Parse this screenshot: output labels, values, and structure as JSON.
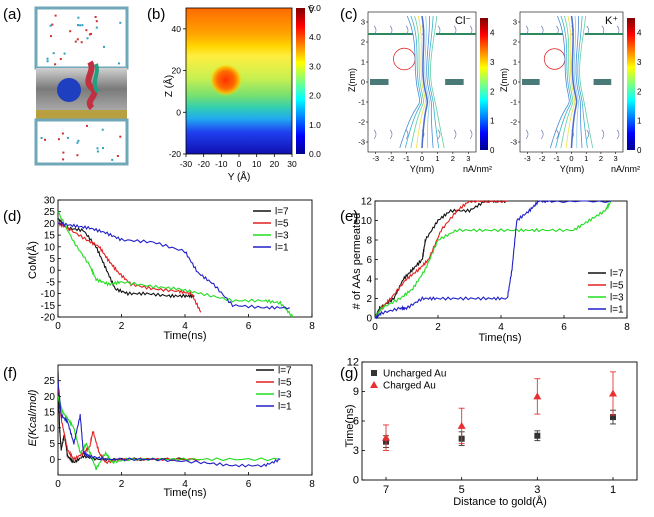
{
  "panel_labels": [
    "(a)",
    "(b)",
    "(c)",
    "(d)",
    "(e)",
    "(f)",
    "(g)"
  ],
  "chart_data": [
    {
      "id": "b",
      "type": "heatmap",
      "xlabel": "Y (Å)",
      "ylabel": "Z (Å)",
      "xticks": [
        "-30",
        "-20",
        "-10",
        "0",
        "10",
        "20",
        "30"
      ],
      "yticks": [
        "-20",
        "0",
        "20",
        "40"
      ],
      "xlim": [
        -30,
        30
      ],
      "ylim": [
        -20,
        50
      ],
      "colorbar": {
        "unit": "V",
        "min": 0.0,
        "max": 5.0,
        "ticks": [
          "0.0",
          "1.0",
          "2.0",
          "3.0",
          "4.0",
          "5.0"
        ]
      },
      "regions": [
        {
          "z_from": 30,
          "z_to": 50,
          "value": 4.6
        },
        {
          "z_from": 10,
          "z_to": 30,
          "value": 3.5
        },
        {
          "z_from": 0,
          "z_to": 10,
          "value": 2.2
        },
        {
          "z_from": -20,
          "z_to": 0,
          "value": 0.5
        }
      ],
      "hotspot": {
        "y": -9,
        "z": 15,
        "value": 4.7
      }
    },
    {
      "id": "c",
      "type": "heatmap",
      "xlabel": "Y(nm)",
      "ylabel": "Z(nm)",
      "ion_labels": [
        "Cl⁻",
        "K⁺"
      ],
      "xticks": [
        "-3",
        "-2",
        "-1",
        "0",
        "1",
        "2",
        "3"
      ],
      "yticks": [
        "-3",
        "-2",
        "-1",
        "0",
        "1",
        "2",
        "3"
      ],
      "colorbar": {
        "unit": "nA/nm²",
        "min": 0,
        "max": 4.5,
        "ticks": [
          "0",
          "1",
          "2",
          "3",
          "4"
        ]
      }
    },
    {
      "id": "d",
      "type": "line",
      "xlabel": "Time(ns)",
      "ylabel": "CoM(Å)",
      "xlim": [
        0,
        8
      ],
      "ylim": [
        -20,
        30
      ],
      "xticks": [
        "0",
        "2",
        "4",
        "6",
        "8"
      ],
      "yticks": [
        "-20",
        "-15",
        "-10",
        "-5",
        "0",
        "5",
        "10",
        "15",
        "20",
        "25",
        "30"
      ],
      "legend_position": "top-right",
      "series": [
        {
          "name": "l=7",
          "color": "#111111",
          "x": [
            0,
            0.3,
            0.8,
            1.2,
            1.5,
            1.8,
            2.2,
            2.8,
            3.5,
            4.0,
            4.3
          ],
          "y": [
            22,
            18,
            17,
            10,
            1,
            -8,
            -10,
            -10,
            -11,
            -11,
            -11
          ]
        },
        {
          "name": "l=5",
          "color": "#e02020",
          "x": [
            0,
            0.3,
            0.9,
            1.3,
            1.6,
            1.9,
            2.3,
            3.0,
            3.8,
            4.2,
            4.5
          ],
          "y": [
            20,
            18,
            13,
            10,
            4,
            -1,
            -6,
            -8,
            -9,
            -10,
            -18
          ]
        },
        {
          "name": "l=3",
          "color": "#22dd22",
          "x": [
            0,
            0.5,
            1.0,
            1.2,
            1.6,
            2.0,
            3.0,
            3.8,
            4.5,
            5.5,
            6.5,
            7.0,
            7.4
          ],
          "y": [
            25,
            12,
            2,
            -4,
            -6,
            -5,
            -7,
            -8,
            -10,
            -13,
            -13,
            -14,
            -20
          ]
        },
        {
          "name": "l=1",
          "color": "#2020c8",
          "x": [
            0,
            0.5,
            1.0,
            1.5,
            2.0,
            3.0,
            4.0,
            4.4,
            4.9,
            5.5,
            6.5,
            7.3
          ],
          "y": [
            20,
            19,
            18,
            16,
            13,
            12,
            8,
            -1,
            -6,
            -15,
            -16,
            -16
          ]
        }
      ]
    },
    {
      "id": "e",
      "type": "line",
      "xlabel": "Time(ns)",
      "ylabel": "# of AAs permeated",
      "xlim": [
        0,
        8
      ],
      "ylim": [
        0,
        12
      ],
      "xticks": [
        "0",
        "2",
        "4",
        "6",
        "8"
      ],
      "yticks": [
        "0",
        "2",
        "4",
        "6",
        "8",
        "10",
        "12"
      ],
      "legend_position": "right",
      "series": [
        {
          "name": "l=7",
          "color": "#111111",
          "x": [
            0,
            0.15,
            0.6,
            0.9,
            1.2,
            1.5,
            1.6,
            2.0,
            2.4,
            3.0,
            3.5,
            3.8,
            4.2
          ],
          "y": [
            0,
            1,
            2,
            4,
            5,
            6,
            8,
            10,
            11,
            11,
            12,
            12,
            12
          ]
        },
        {
          "name": "l=5",
          "color": "#e02020",
          "x": [
            0,
            0.2,
            0.5,
            1.0,
            1.4,
            1.7,
            2.1,
            2.6,
            3.0,
            3.6,
            4.2
          ],
          "y": [
            0,
            1,
            2,
            4,
            5,
            6,
            9,
            11,
            12,
            12,
            12
          ]
        },
        {
          "name": "l=3",
          "color": "#22dd22",
          "x": [
            0,
            0.2,
            0.8,
            1.2,
            1.6,
            2.0,
            2.6,
            3.5,
            4.5,
            5.2,
            6.3,
            6.8,
            7.3,
            7.5
          ],
          "y": [
            0,
            1,
            2,
            3,
            5,
            8,
            9,
            9,
            9,
            9,
            9,
            10,
            11,
            12
          ]
        },
        {
          "name": "l=1",
          "color": "#2020c8",
          "x": [
            0,
            0.2,
            0.8,
            1.0,
            1.5,
            2.0,
            2.8,
            3.6,
            4.2,
            4.35,
            4.5,
            4.9,
            5.2,
            5.6,
            7.5
          ],
          "y": [
            0,
            0.5,
            1,
            1,
            2,
            2,
            2,
            2,
            2,
            5,
            10,
            11,
            12,
            12,
            12
          ]
        }
      ]
    },
    {
      "id": "f",
      "type": "line",
      "xlabel": "Time(ns)",
      "ylabel": "E(Kcal/mol)",
      "xlim": [
        0,
        8
      ],
      "ylim": [
        -5,
        30
      ],
      "xticks": [
        "0",
        "2",
        "4",
        "6",
        "8"
      ],
      "yticks": [
        "0",
        "5",
        "10",
        "15",
        "20",
        "25"
      ],
      "legend_position": "top-right",
      "series": [
        {
          "name": "l=7",
          "color": "#111111",
          "x": [
            0,
            0.05,
            0.1,
            0.2,
            0.3,
            0.5,
            0.8,
            1.2,
            2.0,
            4.0
          ],
          "y": [
            28,
            10,
            3,
            8,
            1,
            -1,
            1,
            0,
            0,
            0
          ]
        },
        {
          "name": "l=5",
          "color": "#e02020",
          "x": [
            0,
            0.1,
            0.3,
            0.5,
            0.8,
            1.0,
            1.1,
            1.3,
            1.5,
            2.0,
            3.0,
            4.5
          ],
          "y": [
            24,
            13,
            3,
            0,
            2,
            4,
            9,
            2,
            -1,
            0,
            0,
            0
          ]
        },
        {
          "name": "l=3",
          "color": "#22dd22",
          "x": [
            0,
            0.15,
            0.3,
            0.5,
            0.7,
            0.9,
            1.2,
            1.5,
            1.7,
            2.2,
            3.5,
            5.0,
            7.0
          ],
          "y": [
            20,
            15,
            13,
            10,
            2,
            5,
            -3,
            2,
            -1,
            0,
            0,
            0,
            0
          ]
        },
        {
          "name": "l=1",
          "color": "#2020c8",
          "x": [
            0,
            0.1,
            0.3,
            0.5,
            0.7,
            0.8,
            1.0,
            1.5,
            3.0,
            4.5,
            5.5,
            6.5,
            7.0
          ],
          "y": [
            25,
            14,
            12,
            5,
            14,
            2,
            1,
            0,
            0,
            -1,
            -2,
            -2,
            0
          ]
        }
      ]
    },
    {
      "id": "g",
      "type": "scatter",
      "xlabel": "Distance to gold(Å)",
      "ylabel": "Time(ns)",
      "categories": [
        "7",
        "5",
        "3",
        "1"
      ],
      "ylim": [
        0,
        12
      ],
      "yticks": [
        "0",
        "3",
        "6",
        "9",
        "12"
      ],
      "legend_position": "top-left",
      "series": [
        {
          "name": "Uncharged Au",
          "color": "#333333",
          "marker": "square",
          "values": [
            3.9,
            4.2,
            4.5,
            6.4
          ],
          "errors": [
            0.6,
            0.7,
            0.5,
            0.7
          ]
        },
        {
          "name": "Charged Au",
          "color": "#e83030",
          "marker": "triangle",
          "values": [
            4.3,
            5.5,
            8.5,
            8.8
          ],
          "errors": [
            1.3,
            1.8,
            1.8,
            2.2
          ]
        }
      ]
    }
  ]
}
